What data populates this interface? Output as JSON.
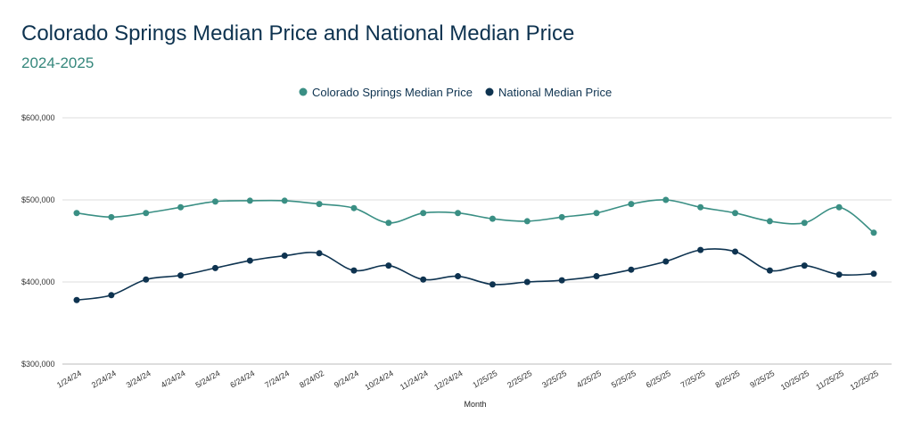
{
  "chart_data": {
    "type": "line",
    "title": "Colorado Springs Median Price and National Median Price",
    "subtitle": "2024-2025",
    "xlabel": "Month",
    "ylabel": "",
    "ylim": [
      300000,
      600000
    ],
    "yticks": [
      300000,
      400000,
      500000,
      600000
    ],
    "ytick_labels": [
      "$300,000",
      "$400,000",
      "$500,000",
      "$600,000"
    ],
    "grid": true,
    "legend": "top-center",
    "categories": [
      "1/24/24",
      "2/24/24",
      "3/24/24",
      "4/24/24",
      "5/24/24",
      "6/24/24",
      "7/24/24",
      "8/24/02",
      "9/24/24",
      "10/24/24",
      "11/24/24",
      "12/24/24",
      "1/25/25",
      "2/25/25",
      "3/25/25",
      "4/25/25",
      "5/25/25",
      "6/25/25",
      "7/25/25",
      "8/25/25",
      "9/25/25",
      "10/25/25",
      "11/25/25",
      "12/25/25"
    ],
    "series": [
      {
        "name": "Colorado Springs Median Price",
        "color": "#3a8f84",
        "values": [
          484000,
          479000,
          484000,
          491000,
          498000,
          499000,
          499000,
          495000,
          490000,
          472000,
          484000,
          484000,
          477000,
          474000,
          479000,
          484000,
          495000,
          500000,
          491000,
          484000,
          474000,
          472000,
          491000,
          460000
        ]
      },
      {
        "name": "National Median Price",
        "color": "#0e3350",
        "values": [
          378000,
          384000,
          403000,
          408000,
          417000,
          426000,
          432000,
          435000,
          414000,
          420000,
          403000,
          407000,
          397000,
          400000,
          402000,
          407000,
          415000,
          425000,
          439000,
          437000,
          414000,
          420000,
          409000,
          410000
        ]
      }
    ]
  }
}
